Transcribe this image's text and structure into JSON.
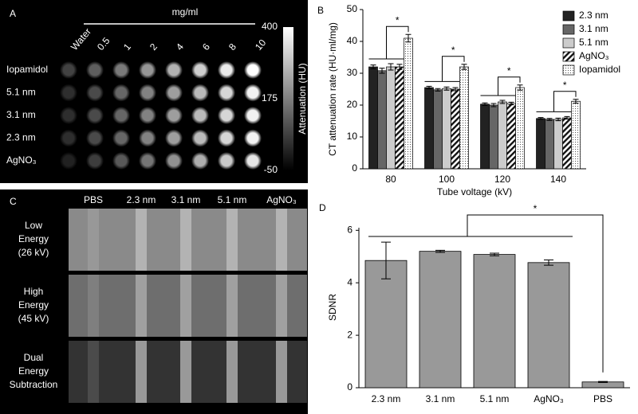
{
  "panel_a": {
    "label": "A",
    "unit": "mg/ml",
    "columns": [
      "Water",
      "0.5",
      "1",
      "2",
      "4",
      "6",
      "8",
      "10"
    ],
    "rows": [
      "Iopamidol",
      "5.1 nm",
      "3.1 nm",
      "2.3 nm",
      "AgNO₃"
    ],
    "colorbar_ticks": [
      400,
      175,
      -50
    ],
    "colorbar_label": "Attenuation (HU)"
  },
  "panel_c": {
    "label": "C",
    "columns": [
      "PBS",
      "2.3 nm",
      "3.1 nm",
      "5.1 nm",
      "AgNO₃"
    ],
    "rows": [
      [
        "Low",
        "Energy",
        "(26 kV)"
      ],
      [
        "High",
        "Energy",
        "(45 kV)"
      ],
      [
        "Dual",
        "Energy",
        "Subtraction"
      ]
    ]
  },
  "chart_data": [
    {
      "type": "grouped_bar",
      "panel": "B",
      "x_label": "Tube voltage (kV)",
      "y_label": "CT attenuation rate (HU·ml/mg)",
      "categories": [
        "80",
        "100",
        "120",
        "140"
      ],
      "series": [
        {
          "name": "2.3 nm",
          "color": "#222222",
          "values": [
            32,
            25.5,
            20.3,
            15.8
          ],
          "errors": [
            0.6,
            0.4,
            0.4,
            0.3
          ]
        },
        {
          "name": "3.1 nm",
          "color": "#666666",
          "values": [
            30.8,
            24.8,
            20,
            15.5
          ],
          "errors": [
            0.8,
            0.4,
            0.5,
            0.3
          ]
        },
        {
          "name": "5.1 nm",
          "color": "#cccccc",
          "values": [
            32,
            25.2,
            21,
            15.5
          ],
          "errors": [
            1,
            0.5,
            0.5,
            0.4
          ]
        },
        {
          "name": "AgNO₃",
          "color": "#ffffff",
          "pattern": "hatch",
          "values": [
            32,
            25,
            20.5,
            16
          ],
          "errors": [
            0.8,
            0.5,
            0.4,
            0.4
          ]
        },
        {
          "name": "Iopamidol",
          "color": "#ffffff",
          "pattern": "dots",
          "values": [
            41,
            32,
            25.5,
            21.2
          ],
          "errors": [
            1.2,
            0.8,
            0.8,
            0.6
          ]
        }
      ],
      "annotations": [
        "*",
        "*",
        "*",
        "*"
      ],
      "ylim": [
        0,
        50
      ],
      "yticks": [
        0,
        10,
        20,
        30,
        40,
        50
      ],
      "legend": "upper right"
    },
    {
      "type": "bar",
      "panel": "D",
      "y_label": "SDNR",
      "categories": [
        "2.3 nm",
        "3.1 nm",
        "5.1 nm",
        "AgNO₃",
        "PBS"
      ],
      "values": [
        4.85,
        5.2,
        5.08,
        4.77,
        0.22
      ],
      "errors": [
        0.7,
        0.04,
        0.05,
        0.1,
        0.02
      ],
      "color": "#999999",
      "annotations": [
        "*"
      ],
      "ylim": [
        0,
        6.1
      ],
      "yticks": [
        0,
        2,
        4,
        6
      ]
    }
  ]
}
